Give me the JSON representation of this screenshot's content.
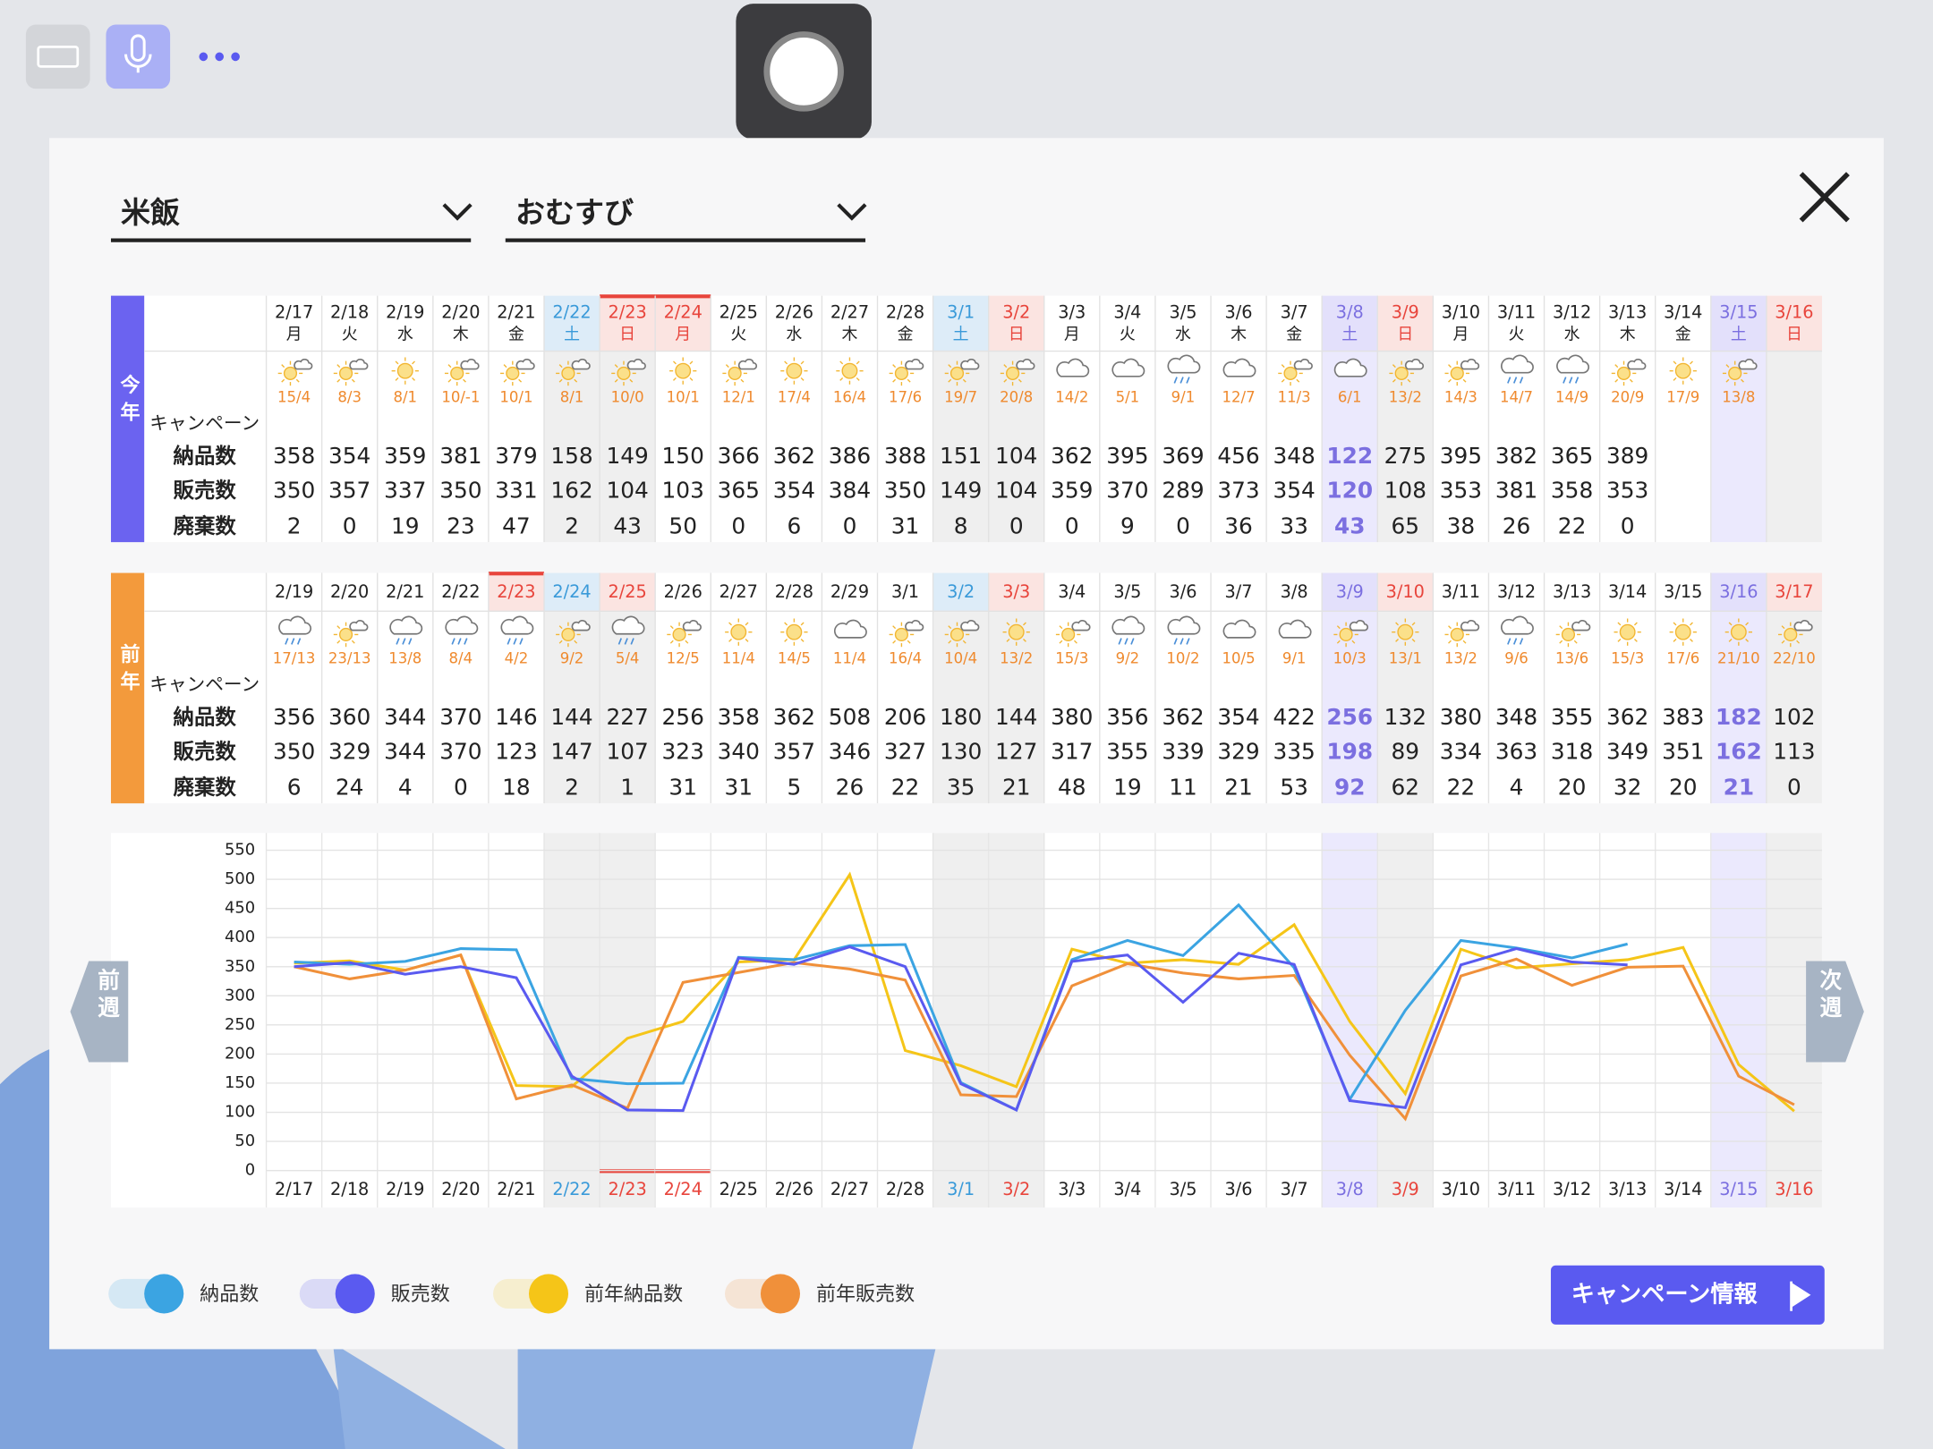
{
  "header": {
    "category": "米飯",
    "subcategory": "おむすび"
  },
  "tables": {
    "row_labels": [
      "キャンペーン",
      "納品数",
      "販売数",
      "廃棄数"
    ],
    "this_year": {
      "label": "今年",
      "weekdays": [
        "月",
        "火",
        "水",
        "木",
        "金",
        "土",
        "日",
        "月",
        "火",
        "水",
        "木",
        "金",
        "土",
        "日",
        "月",
        "火",
        "水",
        "木",
        "金",
        "土",
        "日",
        "月",
        "火",
        "水",
        "木",
        "金",
        "土",
        "日"
      ],
      "weather": [
        "15/4",
        "8/3",
        "8/1",
        "10/-1",
        "10/1",
        "8/1",
        "10/0",
        "10/1",
        "12/1",
        "17/4",
        "16/4",
        "17/6",
        "19/7",
        "20/8",
        "14/2",
        "5/1",
        "9/1",
        "12/7",
        "11/3",
        "6/1",
        "13/2",
        "14/3",
        "14/7",
        "14/9",
        "20/9",
        "17/9",
        "13/8"
      ],
      "weather_icons": [
        "sc",
        "sc",
        "s",
        "sc",
        "sc",
        "sc",
        "sc",
        "s",
        "sc",
        "s",
        "s",
        "sc",
        "sc",
        "sc",
        "c",
        "c",
        "r",
        "c",
        "sc",
        "c",
        "sc",
        "sc",
        "r",
        "r",
        "sc",
        "s",
        "sc"
      ],
      "waste": [
        2,
        0,
        19,
        23,
        47,
        2,
        43,
        50,
        0,
        6,
        0,
        31,
        8,
        0,
        0,
        9,
        0,
        36,
        33,
        43,
        65,
        38,
        26,
        22,
        0
      ],
      "saturday_columns": [
        5,
        12,
        19,
        26
      ],
      "red_columns": [
        6,
        7,
        13,
        20,
        27
      ],
      "holiday_columns": [
        6,
        7
      ],
      "weekend_columns": [
        5,
        6,
        12,
        13,
        19,
        20,
        26,
        27
      ],
      "campaign_columns": [
        19,
        26
      ]
    },
    "last_year": {
      "label": "前年",
      "dates": [
        "2/19",
        "2/20",
        "2/21",
        "2/22",
        "2/23",
        "2/24",
        "2/25",
        "2/26",
        "2/27",
        "2/28",
        "2/29",
        "3/1",
        "3/2",
        "3/3",
        "3/4",
        "3/5",
        "3/6",
        "3/7",
        "3/8",
        "3/9",
        "3/10",
        "3/11",
        "3/12",
        "3/13",
        "3/14",
        "3/15",
        "3/16",
        "3/17"
      ],
      "weather": [
        "17/13",
        "23/13",
        "13/8",
        "8/4",
        "4/2",
        "9/2",
        "5/4",
        "12/5",
        "11/4",
        "14/5",
        "11/4",
        "16/4",
        "10/4",
        "13/2",
        "15/3",
        "9/2",
        "10/2",
        "10/5",
        "9/1",
        "10/3",
        "13/1",
        "13/2",
        "9/6",
        "13/6",
        "15/3",
        "17/6",
        "21/10",
        "22/10"
      ],
      "weather_icons": [
        "r",
        "sc",
        "r",
        "r",
        "r",
        "sc",
        "r",
        "sc",
        "s",
        "s",
        "c",
        "sc",
        "sc",
        "s",
        "sc",
        "r",
        "r",
        "c",
        "c",
        "sc",
        "s",
        "sc",
        "r",
        "sc",
        "s",
        "s",
        "s",
        "sc"
      ],
      "waste": [
        6,
        24,
        4,
        0,
        18,
        2,
        1,
        31,
        31,
        5,
        26,
        22,
        35,
        21,
        48,
        19,
        11,
        21,
        53,
        92,
        62,
        22,
        4,
        20,
        32,
        20,
        21,
        0
      ],
      "saturday_columns": [
        5,
        12,
        19,
        26
      ],
      "red_columns": [
        4,
        6,
        13,
        20,
        27
      ],
      "holiday_columns": [
        4
      ],
      "weekend_columns": [
        5,
        6,
        12,
        13,
        19,
        20,
        26,
        27
      ],
      "campaign_columns": [
        19,
        26
      ]
    }
  },
  "chart_data": {
    "type": "line",
    "categories": [
      "2/17",
      "2/18",
      "2/19",
      "2/20",
      "2/21",
      "2/22",
      "2/23",
      "2/24",
      "2/25",
      "2/26",
      "2/27",
      "2/28",
      "3/1",
      "3/2",
      "3/3",
      "3/4",
      "3/5",
      "3/6",
      "3/7",
      "3/8",
      "3/9",
      "3/10",
      "3/11",
      "3/12",
      "3/13",
      "3/14",
      "3/15",
      "3/16"
    ],
    "ylim": [
      0,
      550
    ],
    "yticks": [
      0,
      50,
      100,
      150,
      200,
      250,
      300,
      350,
      400,
      450,
      500,
      550
    ],
    "grid": true,
    "series": [
      {
        "name": "納品数",
        "color": "#3ba4e2",
        "values": [
          358,
          354,
          359,
          381,
          379,
          158,
          149,
          150,
          366,
          362,
          386,
          388,
          151,
          104,
          362,
          395,
          369,
          456,
          348,
          122,
          275,
          395,
          382,
          365,
          389,
          null,
          null,
          null
        ]
      },
      {
        "name": "販売数",
        "color": "#5a5af0",
        "values": [
          350,
          357,
          337,
          350,
          331,
          162,
          104,
          103,
          365,
          354,
          384,
          350,
          149,
          104,
          359,
          370,
          289,
          373,
          354,
          120,
          108,
          353,
          381,
          358,
          353,
          null,
          null,
          null
        ]
      },
      {
        "name": "前年納品数",
        "color": "#f5c518",
        "values": [
          356,
          360,
          344,
          370,
          146,
          144,
          227,
          256,
          358,
          362,
          508,
          206,
          180,
          144,
          380,
          356,
          362,
          354,
          422,
          256,
          132,
          380,
          348,
          355,
          362,
          383,
          182,
          102
        ]
      },
      {
        "name": "前年販売数",
        "color": "#f0903a",
        "values": [
          350,
          329,
          344,
          370,
          123,
          147,
          107,
          323,
          340,
          357,
          346,
          327,
          130,
          127,
          317,
          355,
          339,
          329,
          335,
          198,
          89,
          334,
          363,
          318,
          349,
          351,
          162,
          113
        ]
      }
    ]
  },
  "nav": {
    "prev": "前週",
    "next": "次週"
  },
  "button": "キャンペーン情報"
}
